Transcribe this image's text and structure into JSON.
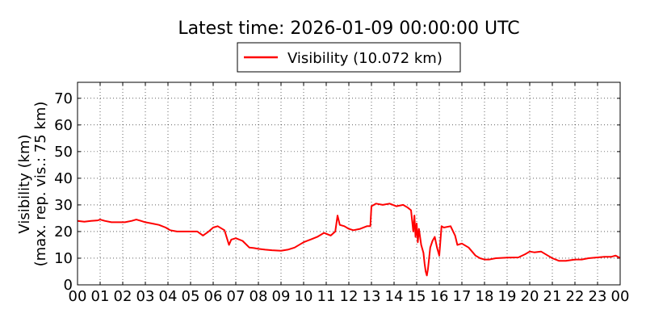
{
  "chart_data": {
    "type": "line",
    "title": "Latest time: 2026-01-09 00:00:00 UTC",
    "ylabel_line1": "Visibility (km)",
    "ylabel_line2": "(max. rep. vis.: 75 km)",
    "xlabel": "",
    "xlim": [
      0,
      24
    ],
    "ylim": [
      0,
      76
    ],
    "grid": true,
    "legend_position": "top-center",
    "x_ticks": [
      0,
      1,
      2,
      3,
      4,
      5,
      6,
      7,
      8,
      9,
      10,
      11,
      12,
      13,
      14,
      15,
      16,
      17,
      18,
      19,
      20,
      21,
      22,
      23,
      24
    ],
    "x_tick_labels": [
      "00",
      "01",
      "02",
      "03",
      "04",
      "05",
      "06",
      "07",
      "08",
      "09",
      "10",
      "11",
      "12",
      "13",
      "14",
      "15",
      "16",
      "17",
      "18",
      "19",
      "20",
      "21",
      "22",
      "23",
      "00"
    ],
    "y_ticks": [
      0,
      10,
      20,
      30,
      40,
      50,
      60,
      70
    ],
    "y_tick_labels": [
      "0",
      "10",
      "20",
      "30",
      "40",
      "50",
      "60",
      "70"
    ],
    "series": [
      {
        "name": "Visibility (10.072 km)",
        "color": "#ff0000",
        "x": [
          0,
          0.3,
          0.6,
          0.9,
          1.0,
          1.2,
          1.5,
          1.8,
          2.1,
          2.4,
          2.6,
          2.8,
          3.0,
          3.3,
          3.6,
          3.9,
          4.1,
          4.4,
          4.7,
          5.0,
          5.3,
          5.55,
          5.8,
          6.0,
          6.2,
          6.5,
          6.7,
          6.8,
          7.0,
          7.3,
          7.6,
          7.8,
          8.0,
          8.3,
          8.6,
          9.0,
          9.3,
          9.6,
          10.0,
          10.3,
          10.6,
          10.9,
          11.2,
          11.4,
          11.5,
          11.6,
          11.8,
          12.0,
          12.2,
          12.5,
          12.8,
          12.95,
          13.0,
          13.2,
          13.5,
          13.8,
          14.1,
          14.4,
          14.6,
          14.75,
          14.8,
          14.85,
          14.9,
          14.95,
          15.0,
          15.05,
          15.1,
          15.2,
          15.3,
          15.35,
          15.4,
          15.45,
          15.5,
          15.6,
          15.7,
          15.8,
          15.9,
          16.0,
          16.1,
          16.2,
          16.5,
          16.7,
          16.8,
          17.0,
          17.3,
          17.6,
          17.8,
          18.0,
          18.2,
          18.5,
          19.0,
          19.5,
          19.8,
          20.0,
          20.2,
          20.5,
          20.8,
          21.0,
          21.3,
          21.6,
          22.0,
          22.3,
          22.6,
          23.0,
          23.3,
          23.6,
          23.8,
          24.0
        ],
        "values": [
          24,
          23.7,
          24,
          24.2,
          24.5,
          24,
          23.5,
          23.5,
          23.5,
          24,
          24.5,
          24,
          23.5,
          23,
          22.5,
          21.5,
          20.5,
          20,
          20,
          20,
          20,
          18.5,
          20,
          21.5,
          22,
          20.5,
          15,
          17,
          17.5,
          16.5,
          14,
          13.8,
          13.5,
          13.2,
          13,
          12.8,
          13.2,
          14,
          16,
          17,
          18,
          19.5,
          18.5,
          20,
          26,
          22.5,
          22,
          21,
          20.5,
          21,
          22,
          22,
          29.5,
          30.5,
          30,
          30.5,
          29.5,
          30,
          29,
          28,
          24,
          20,
          26,
          18,
          23,
          16,
          21,
          15,
          12,
          8,
          5,
          3.5,
          6,
          14,
          16.5,
          18,
          14,
          11,
          22,
          21.5,
          22,
          18.5,
          15,
          15.5,
          14,
          11,
          10,
          9.5,
          9.5,
          10,
          10.2,
          10.3,
          11.5,
          12.5,
          12.2,
          12.5,
          11,
          10,
          9,
          9,
          9.5,
          9.5,
          10,
          10.3,
          10.5,
          10.5,
          11,
          10.07
        ]
      }
    ]
  }
}
